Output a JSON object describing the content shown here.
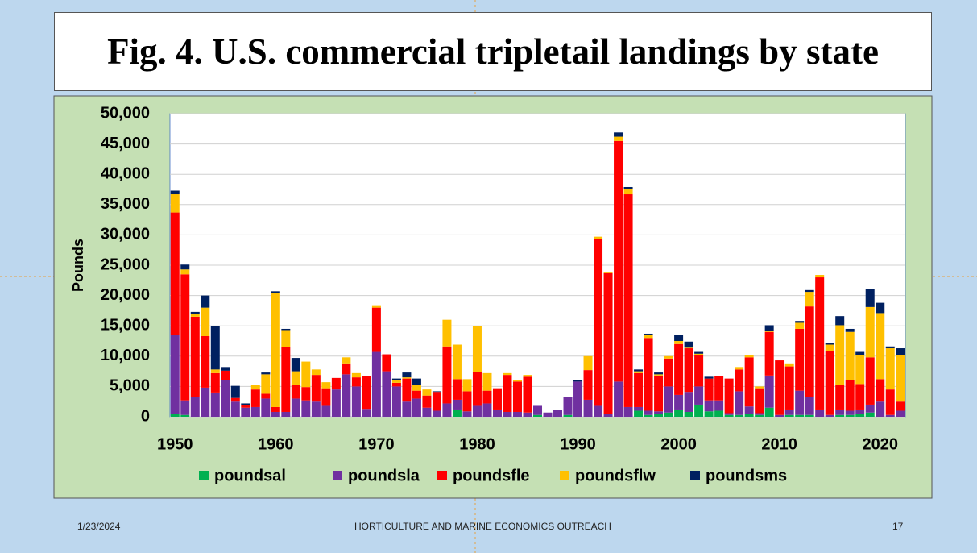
{
  "chart_data": {
    "type": "stacked_bar",
    "title": "Fig. 4. U.S. commercial tripletail landings by state",
    "y_label": "Pounds",
    "categories": [
      "1950",
      null,
      null,
      null,
      null,
      null,
      null,
      null,
      null,
      null,
      "1960",
      null,
      null,
      null,
      null,
      null,
      null,
      null,
      null,
      null,
      "1970",
      null,
      null,
      null,
      null,
      null,
      null,
      null,
      null,
      null,
      "1980",
      null,
      null,
      null,
      null,
      null,
      null,
      null,
      null,
      null,
      "1990",
      null,
      null,
      null,
      null,
      null,
      null,
      null,
      null,
      null,
      "2000",
      null,
      null,
      null,
      null,
      null,
      null,
      null,
      null,
      null,
      "2010",
      null,
      null,
      null,
      null,
      null,
      null,
      null,
      null,
      null,
      "2020",
      null,
      null
    ],
    "series": [
      {
        "name": "poundsal",
        "color": "#00b050",
        "values": [
          500,
          300,
          0,
          0,
          0,
          0,
          0,
          0,
          0,
          0,
          0,
          0,
          0,
          0,
          0,
          0,
          0,
          0,
          0,
          0,
          0,
          0,
          0,
          0,
          0,
          0,
          0,
          0,
          1200,
          0,
          0,
          0,
          0,
          0,
          0,
          0,
          300,
          0,
          0,
          300,
          0,
          0,
          0,
          0,
          0,
          0,
          1000,
          300,
          500,
          700,
          1200,
          800,
          2000,
          900,
          1000,
          300,
          300,
          500,
          300,
          1500,
          0,
          300,
          300,
          300,
          0,
          0,
          300,
          300,
          500,
          700,
          0,
          0,
          0
        ]
      },
      {
        "name": "poundsla",
        "color": "#7030a0",
        "values": [
          13000,
          2400,
          3300,
          4800,
          4000,
          6000,
          2500,
          1500,
          1600,
          3000,
          800,
          800,
          3000,
          2700,
          2500,
          1800,
          4500,
          7000,
          5000,
          1300,
          10700,
          7500,
          5000,
          2500,
          3000,
          1500,
          1000,
          2200,
          1600,
          900,
          1800,
          2200,
          1200,
          800,
          800,
          700,
          1500,
          700,
          1100,
          3000,
          5800,
          2800,
          1800,
          500,
          5800,
          1600,
          600,
          700,
          400,
          4300,
          2400,
          3300,
          3000,
          1800,
          1700,
          300,
          3900,
          1200,
          300,
          5300,
          300,
          900,
          4000,
          2900,
          1200,
          300,
          900,
          700,
          700,
          1300,
          2500,
          300,
          1000
        ]
      },
      {
        "name": "poundsfle",
        "color": "#ff0000",
        "values": [
          20200,
          20800,
          13200,
          8500,
          3200,
          1600,
          600,
          400,
          2900,
          800,
          800,
          10700,
          2300,
          2200,
          4400,
          2900,
          1900,
          1800,
          1500,
          5400,
          7300,
          2800,
          600,
          3800,
          1300,
          2000,
          3100,
          9400,
          3400,
          3300,
          5600,
          2100,
          3500,
          6100,
          5000,
          5900,
          0,
          0,
          0,
          0,
          0,
          4900,
          27500,
          23200,
          39700,
          35100,
          5600,
          12000,
          5900,
          4600,
          8400,
          7200,
          5200,
          3600,
          4000,
          5700,
          3600,
          8100,
          4100,
          7200,
          9000,
          7100,
          10200,
          15000,
          21800,
          10500,
          4100,
          5100,
          4200,
          7800,
          3700,
          4200,
          1500
        ]
      },
      {
        "name": "poundsflw",
        "color": "#ffc000",
        "values": [
          3000,
          800,
          500,
          4700,
          600,
          0,
          0,
          0,
          700,
          3200,
          18800,
          2800,
          2200,
          4200,
          900,
          1000,
          0,
          1000,
          700,
          0,
          400,
          0,
          500,
          200,
          1000,
          1000,
          0,
          4400,
          5700,
          2000,
          7600,
          2900,
          0,
          300,
          200,
          300,
          0,
          0,
          0,
          0,
          0,
          2300,
          400,
          200,
          700,
          800,
          300,
          500,
          200,
          400,
          500,
          100,
          200,
          0,
          0,
          0,
          400,
          400,
          300,
          200,
          0,
          500,
          1000,
          2400,
          400,
          1100,
          9800,
          7900,
          4800,
          8300,
          10900,
          6800,
          7700
        ]
      },
      {
        "name": "poundsms",
        "color": "#002060",
        "values": [
          600,
          800,
          300,
          2000,
          7200,
          600,
          2000,
          300,
          0,
          300,
          300,
          200,
          2200,
          0,
          0,
          0,
          0,
          0,
          0,
          0,
          0,
          0,
          200,
          800,
          1000,
          0,
          100,
          0,
          0,
          0,
          0,
          0,
          0,
          0,
          0,
          0,
          0,
          0,
          0,
          0,
          300,
          0,
          0,
          0,
          700,
          400,
          300,
          200,
          300,
          0,
          1000,
          1000,
          300,
          300,
          0,
          0,
          0,
          0,
          0,
          900,
          0,
          0,
          300,
          300,
          0,
          200,
          1500,
          500,
          500,
          3000,
          1700,
          300,
          1100
        ]
      }
    ],
    "ylim": [
      0,
      50000
    ],
    "yticks": [
      0,
      {
        "value": 5000,
        "label": "5,000"
      },
      {
        "value": 10000,
        "label": "10,000"
      },
      {
        "value": 15000,
        "label": "15,000"
      },
      {
        "value": 20000,
        "label": "20,000"
      },
      {
        "value": 25000,
        "label": "25,000"
      },
      {
        "value": 30000,
        "label": "30,000"
      },
      {
        "value": 35000,
        "label": "35,000"
      },
      {
        "value": 40000,
        "label": "40,000"
      },
      {
        "value": 45000,
        "label": "45,000"
      },
      {
        "value": 50000,
        "label": "50,000"
      }
    ],
    "grid": true,
    "legend": "bottom"
  },
  "footer": {
    "date": "1/23/2024",
    "center": "HORTICULTURE AND MARINE ECONOMICS OUTREACH",
    "page": "17"
  }
}
